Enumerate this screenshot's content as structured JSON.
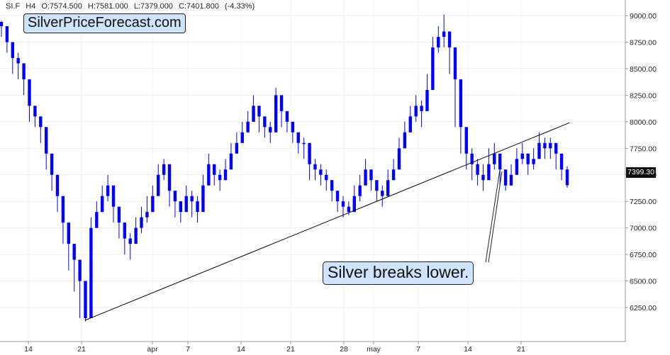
{
  "header": {
    "symbol": "SI.F",
    "timeframe": "H4",
    "open": "O:7574.500",
    "high": "H:7581.000",
    "low": "L:7379.000",
    "close": "C:7401.800",
    "change": "(-4.33%)"
  },
  "brand": "SilverPriceForecast.com",
  "annotation": "Silver breaks lower.",
  "last_price_label": "7399.30",
  "colors": {
    "candles": "#0000ff",
    "trendline": "#000000",
    "callout_bg": "#cfe3fb",
    "grid": "#d9d9d9"
  },
  "chart_data": {
    "type": "line",
    "ylim": [
      6000,
      9100
    ],
    "yticks": [
      6250,
      6500,
      6750,
      7000,
      7250,
      7500,
      7750,
      8000,
      8250,
      8500,
      8750,
      9000
    ],
    "ytick_labels": [
      "6250.00",
      "6500.00",
      "6750.00",
      "7000.00",
      "7250.00",
      "7500.00",
      "7750.00",
      "8000.00",
      "8250.00",
      "8500.00",
      "8750.00",
      "9000.00"
    ],
    "xtick_labels": [
      "14",
      "21",
      "apr",
      "7",
      "14",
      "21",
      "28",
      "may",
      "7",
      "14",
      "21"
    ],
    "grid": true,
    "series": [
      {
        "values": [
          8900,
          8750,
          8600,
          8550,
          8400,
          8150,
          8050,
          7950,
          7700,
          7500,
          7300,
          7050,
          6850,
          6700,
          6500,
          6150,
          7000,
          7150,
          7300,
          7400,
          7200,
          7050,
          6900,
          6850,
          7000,
          7100,
          7150,
          7300,
          7500,
          7600,
          7350,
          7250,
          7150,
          7300,
          7250,
          7150,
          7400,
          7600,
          7500,
          7450,
          7550,
          7700,
          7800,
          7900,
          8000,
          8150,
          8050,
          7950,
          7900,
          8250,
          8100,
          8000,
          7900,
          7800,
          7800,
          7600,
          7550,
          7500,
          7450,
          7350,
          7250,
          7200,
          7150,
          7300,
          7400,
          7550,
          7450,
          7350,
          7300,
          7450,
          7550,
          7750,
          7900,
          8050,
          8150,
          8100,
          8300,
          8700,
          8800,
          8850,
          8700,
          8400,
          7950,
          7700,
          7600,
          7500,
          7450,
          7600,
          7700,
          7550,
          7400,
          7500,
          7650,
          7700,
          7600,
          7650,
          7800,
          7750,
          7800,
          7700,
          7550,
          7401.8
        ],
        "candle_high": [
          8950,
          8800,
          8700,
          8650,
          8500,
          8250,
          8150,
          8050,
          7800,
          7600,
          7400,
          7150,
          7000,
          6850,
          6600,
          6500,
          7100,
          7250,
          7400,
          7500,
          7300,
          7150,
          7050,
          6950,
          7100,
          7200,
          7300,
          7400,
          7600,
          7650,
          7450,
          7350,
          7250,
          7400,
          7350,
          7300,
          7500,
          7700,
          7600,
          7550,
          7650,
          7800,
          7900,
          8000,
          8100,
          8250,
          8150,
          8050,
          8000,
          8320,
          8200,
          8100,
          8000,
          7900,
          7850,
          7700,
          7650,
          7600,
          7550,
          7450,
          7350,
          7300,
          7250,
          7400,
          7500,
          7650,
          7550,
          7450,
          7400,
          7550,
          7650,
          7850,
          8000,
          8150,
          8250,
          8200,
          8450,
          8800,
          8900,
          9010,
          8850,
          8600,
          8100,
          7850,
          7750,
          7650,
          7600,
          7750,
          7800,
          7650,
          7500,
          7600,
          7750,
          7800,
          7700,
          7750,
          7900,
          7850,
          7850,
          7800,
          7650,
          7581
        ],
        "candle_low": [
          8800,
          8650,
          8450,
          8400,
          8250,
          8000,
          7950,
          7800,
          7550,
          7350,
          7150,
          6850,
          6600,
          6400,
          6150,
          6120,
          6850,
          7000,
          7150,
          7250,
          7050,
          6900,
          6750,
          6700,
          6850,
          6950,
          7050,
          7150,
          7350,
          7450,
          7200,
          7100,
          7050,
          7150,
          7100,
          7050,
          7250,
          7450,
          7400,
          7350,
          7450,
          7600,
          7700,
          7800,
          7900,
          8000,
          7900,
          7850,
          7800,
          8050,
          7950,
          7900,
          7800,
          7700,
          7650,
          7450,
          7450,
          7400,
          7350,
          7250,
          7150,
          7100,
          7120,
          7150,
          7250,
          7400,
          7350,
          7250,
          7200,
          7300,
          7450,
          7600,
          7750,
          7900,
          8000,
          7950,
          8150,
          8550,
          8650,
          8700,
          8450,
          7950,
          7700,
          7550,
          7450,
          7400,
          7350,
          7450,
          7550,
          7400,
          7350,
          7400,
          7500,
          7600,
          7500,
          7550,
          7650,
          7650,
          7650,
          7550,
          7450,
          7379
        ]
      }
    ],
    "trendline": {
      "start": {
        "x": "21",
        "y": 6130
      },
      "end": {
        "x": "may 26",
        "y": 7990
      }
    }
  }
}
